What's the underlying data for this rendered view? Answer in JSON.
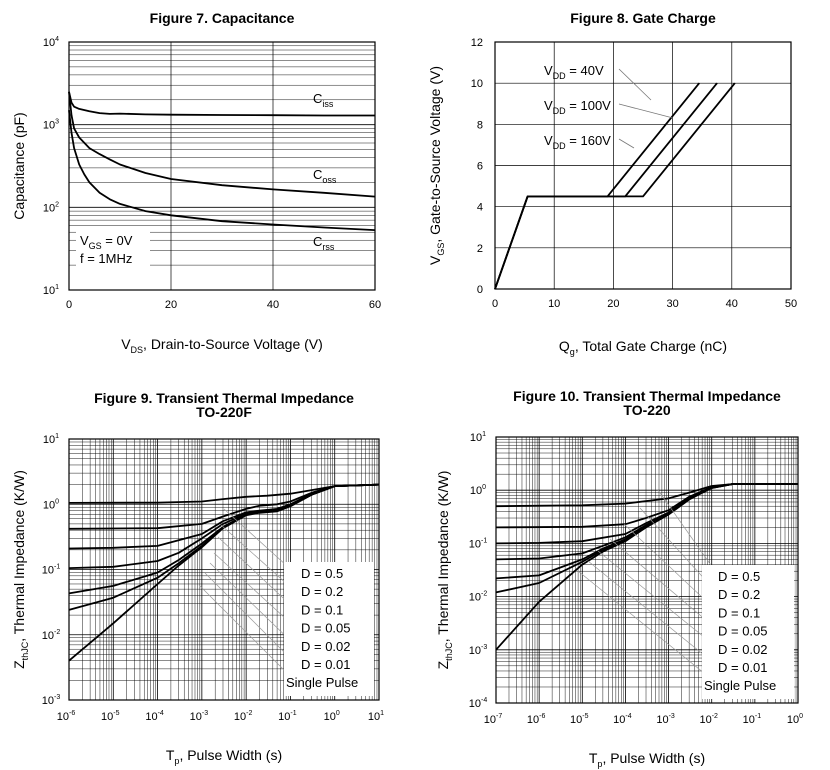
{
  "chart_data": [
    {
      "id": "fig7",
      "type": "line",
      "title": "Figure 7. Capacitance",
      "xlabel": {
        "main": "V",
        "sub": "DS",
        "rest": ", Drain-to-Source Voltage (V)"
      },
      "ylabel": "Capacitance (pF)",
      "xscale": "linear",
      "yscale": "log",
      "xlim": [
        0,
        60
      ],
      "ylim": [
        10,
        10000
      ],
      "xticks": [
        "0",
        "20",
        "40",
        "60"
      ],
      "yticks": [
        {
          "b": "10",
          "e": "1"
        },
        {
          "b": "10",
          "e": "2"
        },
        {
          "b": "10",
          "e": "3"
        },
        {
          "b": "10",
          "e": "4"
        }
      ],
      "conditions": [
        {
          "main": "V",
          "sub": "GS",
          "rest": " = 0V"
        },
        {
          "main": "f = 1MHz",
          "sub": "",
          "rest": ""
        }
      ],
      "series": [
        {
          "name": "C",
          "sub": "iss",
          "x": [
            0,
            0.5,
            1,
            2,
            4,
            6,
            8,
            10,
            15,
            20,
            30,
            40,
            50,
            60
          ],
          "y": [
            2500,
            1850,
            1650,
            1550,
            1450,
            1380,
            1350,
            1360,
            1330,
            1320,
            1310,
            1300,
            1290,
            1290
          ]
        },
        {
          "name": "C",
          "sub": "oss",
          "x": [
            0,
            0.5,
            1,
            2,
            4,
            6,
            8,
            10,
            15,
            20,
            30,
            40,
            50,
            60
          ],
          "y": [
            2500,
            1300,
            900,
            700,
            520,
            440,
            380,
            330,
            260,
            220,
            185,
            165,
            150,
            135
          ]
        },
        {
          "name": "C",
          "sub": "rss",
          "x": [
            0,
            0.5,
            1,
            2,
            3,
            4,
            6,
            8,
            10,
            15,
            20,
            30,
            40,
            50,
            60
          ],
          "y": [
            1500,
            800,
            520,
            330,
            250,
            200,
            150,
            125,
            110,
            90,
            80,
            68,
            62,
            57,
            53
          ]
        }
      ]
    },
    {
      "id": "fig8",
      "type": "line",
      "title": "Figure 8. Gate Charge",
      "xlabel": {
        "main": "Q",
        "sub": "g",
        "rest": ", Total Gate Charge (nC)"
      },
      "ylabel": {
        "main": "V",
        "sub": "GS",
        "rest": ", Gate-to-Source Voltage (V)"
      },
      "xscale": "linear",
      "yscale": "linear",
      "xlim": [
        0,
        50
      ],
      "ylim": [
        0,
        12
      ],
      "xticks": [
        "0",
        "10",
        "20",
        "30",
        "40",
        "50"
      ],
      "yticks": [
        "0",
        "2",
        "4",
        "6",
        "8",
        "10",
        "12"
      ],
      "series": [
        {
          "name": "V",
          "sub": "DD",
          "value": " = 40V",
          "x": [
            0,
            5.5,
            19,
            34.5
          ],
          "y": [
            0,
            4.5,
            4.5,
            10
          ]
        },
        {
          "name": "V",
          "sub": "DD",
          "value": " = 100V",
          "x": [
            0,
            5.5,
            22,
            37.5
          ],
          "y": [
            0,
            4.5,
            4.5,
            10
          ]
        },
        {
          "name": "V",
          "sub": "DD",
          "value": " = 160V",
          "x": [
            0,
            5.5,
            25,
            40.5
          ],
          "y": [
            0,
            4.5,
            4.5,
            10
          ]
        }
      ]
    },
    {
      "id": "fig9",
      "type": "line",
      "title": "Figure 9. Transient Thermal Impedance",
      "subtitle": "TO-220F",
      "xlabel": {
        "main": "T",
        "sub": "p",
        "rest": ", Pulse Width (s)"
      },
      "ylabel": {
        "main": "Z",
        "sub": "thJC",
        "rest": ", Thermal Impedance (K/W)"
      },
      "xscale": "log",
      "yscale": "log",
      "xlim": [
        1e-06,
        10
      ],
      "ylim": [
        0.001,
        10
      ],
      "xticks": [
        {
          "b": "10",
          "e": "-6"
        },
        {
          "b": "10",
          "e": "-5"
        },
        {
          "b": "10",
          "e": "-4"
        },
        {
          "b": "10",
          "e": "-3"
        },
        {
          "b": "10",
          "e": "-2"
        },
        {
          "b": "10",
          "e": "-1"
        },
        {
          "b": "10",
          "e": "0"
        },
        {
          "b": "10",
          "e": "1"
        }
      ],
      "yticks": [
        {
          "b": "10",
          "e": "-3"
        },
        {
          "b": "10",
          "e": "-2"
        },
        {
          "b": "10",
          "e": "-1"
        },
        {
          "b": "10",
          "e": "0"
        },
        {
          "b": "10",
          "e": "1"
        }
      ],
      "legend": [
        "D = 0.5",
        "D = 0.2",
        "D = 0.1",
        "D = 0.05",
        "D = 0.02",
        "D = 0.01",
        "Single Pulse"
      ],
      "series": [
        {
          "name": "D = 0.5",
          "x": [
            1e-06,
            0.0001,
            0.001,
            0.003,
            0.01,
            0.03,
            0.1,
            0.3,
            1,
            10
          ],
          "y": [
            1.05,
            1.06,
            1.1,
            1.2,
            1.3,
            1.35,
            1.45,
            1.65,
            1.9,
            2.0
          ]
        },
        {
          "name": "D = 0.2",
          "x": [
            1e-06,
            0.0001,
            0.001,
            0.003,
            0.01,
            0.02,
            0.05,
            0.1,
            0.3,
            1,
            10
          ],
          "y": [
            0.42,
            0.43,
            0.5,
            0.65,
            0.85,
            0.95,
            1.0,
            1.1,
            1.5,
            1.9,
            2.0
          ]
        },
        {
          "name": "D = 0.1",
          "x": [
            1e-06,
            1e-05,
            0.0001,
            0.001,
            0.003,
            0.01,
            0.02,
            0.05,
            0.1,
            0.3,
            1,
            10
          ],
          "y": [
            0.21,
            0.215,
            0.23,
            0.35,
            0.55,
            0.75,
            0.8,
            0.85,
            1.0,
            1.45,
            1.9,
            2.0
          ]
        },
        {
          "name": "D = 0.05",
          "x": [
            1e-06,
            1e-05,
            0.0001,
            0.0003,
            0.001,
            0.003,
            0.01,
            0.02,
            0.05,
            0.1,
            0.3,
            1,
            10
          ],
          "y": [
            0.105,
            0.11,
            0.135,
            0.18,
            0.3,
            0.5,
            0.72,
            0.78,
            0.82,
            0.97,
            1.4,
            1.9,
            2.0
          ]
        },
        {
          "name": "D = 0.02",
          "x": [
            1e-06,
            1e-05,
            0.0001,
            0.0003,
            0.001,
            0.003,
            0.01,
            0.02,
            0.05,
            0.1,
            0.3,
            1,
            10
          ],
          "y": [
            0.043,
            0.056,
            0.09,
            0.14,
            0.25,
            0.45,
            0.7,
            0.76,
            0.8,
            0.95,
            1.4,
            1.9,
            2.0
          ]
        },
        {
          "name": "D = 0.01",
          "x": [
            1e-06,
            1e-05,
            0.0001,
            0.0003,
            0.001,
            0.003,
            0.01,
            0.02,
            0.05,
            0.1,
            0.3,
            1,
            10
          ],
          "y": [
            0.024,
            0.037,
            0.075,
            0.125,
            0.23,
            0.44,
            0.69,
            0.75,
            0.79,
            0.94,
            1.4,
            1.9,
            2.0
          ]
        },
        {
          "name": "Single Pulse",
          "x": [
            1e-06,
            1e-05,
            0.0001,
            0.0003,
            0.001,
            0.003,
            0.01,
            0.02,
            0.05,
            0.1,
            0.3,
            1,
            10
          ],
          "y": [
            0.004,
            0.015,
            0.06,
            0.115,
            0.22,
            0.43,
            0.68,
            0.74,
            0.78,
            0.93,
            1.4,
            1.9,
            2.0
          ]
        }
      ]
    },
    {
      "id": "fig10",
      "type": "line",
      "title": "Figure 10. Transient Thermal Impedance",
      "subtitle": "TO-220",
      "xlabel": {
        "main": "T",
        "sub": "p",
        "rest": ", Pulse Width (s)"
      },
      "ylabel": {
        "main": "Z",
        "sub": "thJC",
        "rest": ", Thermal Impedance (K/W)"
      },
      "xscale": "log",
      "yscale": "log",
      "xlim": [
        1e-07,
        1
      ],
      "ylim": [
        0.0001,
        10
      ],
      "xticks": [
        {
          "b": "10",
          "e": "-7"
        },
        {
          "b": "10",
          "e": "-6"
        },
        {
          "b": "10",
          "e": "-5"
        },
        {
          "b": "10",
          "e": "-4"
        },
        {
          "b": "10",
          "e": "-3"
        },
        {
          "b": "10",
          "e": "-2"
        },
        {
          "b": "10",
          "e": "-1"
        },
        {
          "b": "10",
          "e": "0"
        }
      ],
      "yticks": [
        {
          "b": "10",
          "e": "-4"
        },
        {
          "b": "10",
          "e": "-3"
        },
        {
          "b": "10",
          "e": "-2"
        },
        {
          "b": "10",
          "e": "-1"
        },
        {
          "b": "10",
          "e": "0"
        },
        {
          "b": "10",
          "e": "1"
        }
      ],
      "legend": [
        "D = 0.5",
        "D = 0.2",
        "D = 0.1",
        "D = 0.05",
        "D = 0.02",
        "D = 0.01",
        "Single Pulse"
      ],
      "series": [
        {
          "name": "D = 0.5",
          "x": [
            1e-07,
            1e-05,
            0.0001,
            0.001,
            0.003,
            0.01,
            0.03,
            1
          ],
          "y": [
            0.5,
            0.52,
            0.56,
            0.7,
            0.9,
            1.2,
            1.3,
            1.3
          ]
        },
        {
          "name": "D = 0.2",
          "x": [
            1e-07,
            1e-05,
            0.0001,
            0.0003,
            0.001,
            0.003,
            0.01,
            0.03,
            1
          ],
          "y": [
            0.2,
            0.205,
            0.23,
            0.3,
            0.42,
            0.75,
            1.15,
            1.3,
            1.3
          ]
        },
        {
          "name": "D = 0.1",
          "x": [
            1e-07,
            1e-06,
            1e-05,
            0.0001,
            0.0003,
            0.001,
            0.003,
            0.01,
            0.03,
            1
          ],
          "y": [
            0.1,
            0.102,
            0.11,
            0.15,
            0.24,
            0.38,
            0.72,
            1.13,
            1.3,
            1.3
          ]
        },
        {
          "name": "D = 0.05",
          "x": [
            1e-07,
            1e-06,
            1e-05,
            3e-05,
            0.0001,
            0.0003,
            0.001,
            0.003,
            0.01,
            0.03,
            1
          ],
          "y": [
            0.05,
            0.052,
            0.065,
            0.09,
            0.13,
            0.22,
            0.37,
            0.7,
            1.12,
            1.3,
            1.3
          ]
        },
        {
          "name": "D = 0.02",
          "x": [
            1e-07,
            1e-06,
            1e-05,
            3e-05,
            0.0001,
            0.0003,
            0.001,
            0.003,
            0.01,
            0.03,
            1
          ],
          "y": [
            0.022,
            0.025,
            0.05,
            0.08,
            0.12,
            0.21,
            0.36,
            0.69,
            1.11,
            1.3,
            1.3
          ]
        },
        {
          "name": "D = 0.01",
          "x": [
            1e-07,
            1e-06,
            1e-05,
            3e-05,
            0.0001,
            0.0003,
            0.001,
            0.003,
            0.01,
            0.03,
            1
          ],
          "y": [
            0.012,
            0.018,
            0.045,
            0.075,
            0.115,
            0.2,
            0.355,
            0.68,
            1.1,
            1.3,
            1.3
          ]
        },
        {
          "name": "Single Pulse",
          "x": [
            1e-07,
            1e-06,
            1e-05,
            3e-05,
            0.0001,
            0.0003,
            0.001,
            0.003,
            0.01,
            0.03,
            1
          ],
          "y": [
            0.001,
            0.008,
            0.04,
            0.07,
            0.11,
            0.2,
            0.35,
            0.67,
            1.1,
            1.3,
            1.3
          ]
        }
      ]
    }
  ]
}
